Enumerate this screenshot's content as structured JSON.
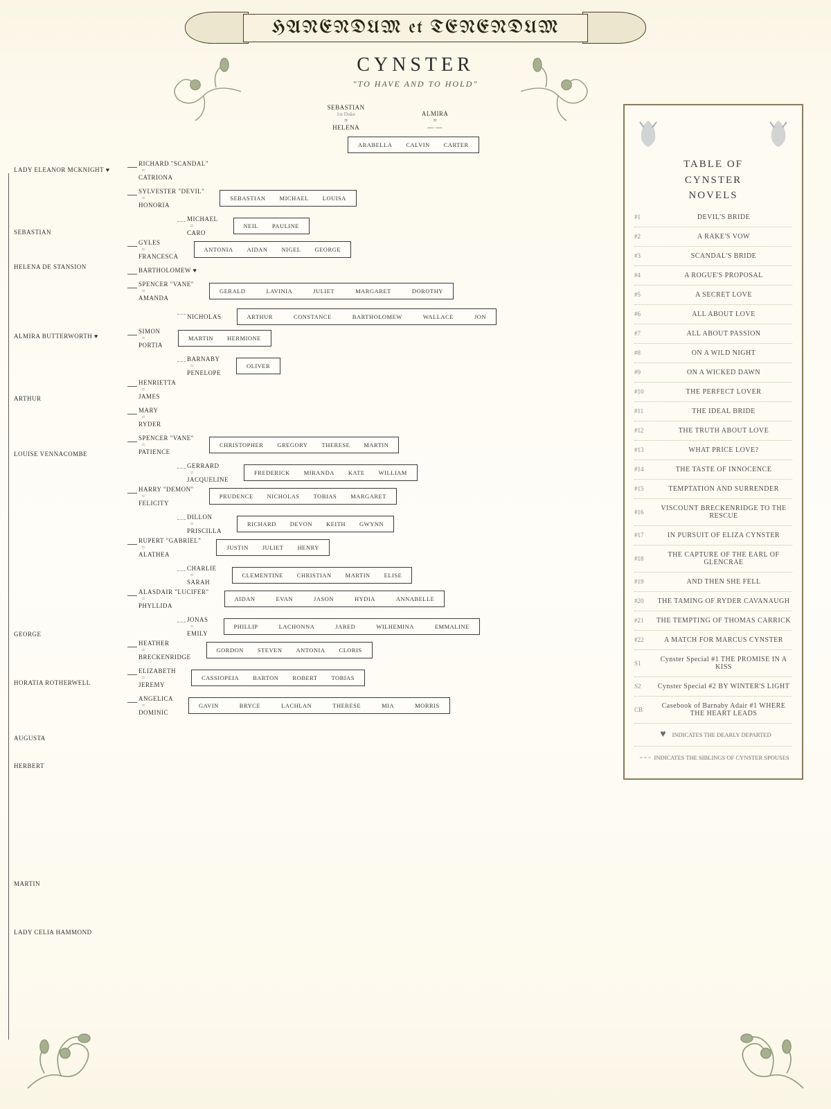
{
  "banner": "HANENDUM et TENENDUM",
  "family_name": "CYNSTER",
  "motto": "\"TO HAVE AND TO HOLD\"",
  "colors": {
    "parchment": "#fdf9ed",
    "ink": "#2a2a2a",
    "border": "#8a7a5c",
    "line": "#5a5a5a",
    "dash": "#9aa7b0",
    "floral": "#5e6b4a"
  },
  "legend": {
    "title_l1": "TABLE OF",
    "title_l2": "CYNSTER",
    "title_l3": "NOVELS",
    "items": [
      {
        "n": "#1",
        "t": "DEVIL'S BRIDE"
      },
      {
        "n": "#2",
        "t": "A RAKE'S VOW"
      },
      {
        "n": "#3",
        "t": "SCANDAL'S BRIDE"
      },
      {
        "n": "#4",
        "t": "A ROGUE'S PROPOSAL"
      },
      {
        "n": "#5",
        "t": "A SECRET LOVE"
      },
      {
        "n": "#6",
        "t": "ALL ABOUT LOVE"
      },
      {
        "n": "#7",
        "t": "ALL ABOUT PASSION"
      },
      {
        "n": "#8",
        "t": "ON A WILD NIGHT"
      },
      {
        "n": "#9",
        "t": "ON A WICKED DAWN"
      },
      {
        "n": "#10",
        "t": "THE PERFECT LOVER"
      },
      {
        "n": "#11",
        "t": "THE IDEAL BRIDE"
      },
      {
        "n": "#12",
        "t": "THE TRUTH ABOUT LOVE"
      },
      {
        "n": "#13",
        "t": "WHAT PRICE LOVE?"
      },
      {
        "n": "#14",
        "t": "THE TASTE OF INNOCENCE"
      },
      {
        "n": "#15",
        "t": "TEMPTATION AND SURRENDER"
      },
      {
        "n": "#16",
        "t": "VISCOUNT BRECKENRIDGE TO THE RESCUE"
      },
      {
        "n": "#17",
        "t": "IN PURSUIT OF ELIZA CYNSTER"
      },
      {
        "n": "#18",
        "t": "THE CAPTURE OF THE EARL OF GLENCRAE"
      },
      {
        "n": "#19",
        "t": "AND THEN SHE FELL"
      },
      {
        "n": "#20",
        "t": "THE TAMING OF RYDER CAVANAUGH"
      },
      {
        "n": "#21",
        "t": "THE TEMPTING OF THOMAS CARRICK"
      },
      {
        "n": "#22",
        "t": "A MATCH FOR MARCUS CYNSTER"
      },
      {
        "n": "S1",
        "t": "Cynster Special #1 THE PROMISE IN A KISS"
      },
      {
        "n": "S2",
        "t": "Cynster Special #2 BY WINTER'S LIGHT"
      },
      {
        "n": "CB",
        "t": "Casebook of Barnaby Adair #1 WHERE THE HEART LEADS"
      }
    ],
    "foot1_mark": "♥",
    "foot1": "INDICATES THE DEARLY DEPARTED",
    "foot2_mark": "- - -",
    "foot2": "INDICATES THE SIBLINGS OF CYNSTER SPOUSES"
  },
  "tree": {
    "root": {
      "p1": "SEBASTIAN",
      "p1sub": "1st Duke",
      "p2": "HELENA"
    },
    "root2": {
      "p1": "ALMIRA",
      "p2": "— —",
      "kids": [
        "ARABELLA",
        "CALVIN",
        "CARTER"
      ]
    },
    "left_ancestors": [
      "LADY ELEANOR MCKNIGHT ♥",
      "SEBASTIAN",
      "HELENA de STANSION",
      "ALMIRA BUTTERWORTH ♥",
      "ARTHUR",
      "LOUISE VENNACOMBE",
      "GEORGE",
      "HORATIA ROTHERWELL",
      "AUGUSTA",
      "HERBERT",
      "MARTIN",
      "LADY CELIA HAMMOND"
    ],
    "branches": [
      {
        "parent": "RICHARD \"SCANDAL\"",
        "spouse": "CATRIONA",
        "kids": []
      },
      {
        "parent": "SYLVESTER \"DEVIL\"",
        "spouse": "HONORIA",
        "kids": [
          "SEBASTIAN",
          "MICHAEL",
          "LOUISA"
        ]
      },
      {
        "parent": "MICHAEL",
        "spouse": "CARO",
        "kids": [
          "NEIL",
          "PAULINE"
        ],
        "dash": true,
        "indent": 1
      },
      {
        "parent": "GYLES",
        "spouse": "FRANCESCA",
        "kids": [
          "ANTONIA",
          "AIDAN",
          "NIGEL",
          "GEORGE"
        ]
      },
      {
        "parent": "BARTHOLOMEW ♥",
        "spouse": "",
        "kids": []
      },
      {
        "parent": "SPENCER \"VANE\"",
        "spouse": "AMANDA",
        "kids": [
          "GERALD",
          "LAVINIA",
          "JULIET",
          "MARGARET",
          "DOROTHY"
        ]
      },
      {
        "parent": "NICHOLAS",
        "spouse": "",
        "kids": [
          "ARTHUR",
          "CONSTANCE",
          "BARTHOLOMEW",
          "WALLACE",
          "JON"
        ],
        "dash": true,
        "indent": 1
      },
      {
        "parent": "SIMON",
        "spouse": "PORTIA",
        "kids": [
          "MARTIN",
          "HERMIONE"
        ]
      },
      {
        "parent": "BARNABY",
        "spouse": "PENELOPE",
        "kids": [
          "OLIVER"
        ],
        "dash": true,
        "indent": 1
      },
      {
        "parent": "HENRIETTA",
        "spouse": "JAMES",
        "kids": []
      },
      {
        "parent": "MARY",
        "spouse": "RYDER",
        "kids": []
      },
      {
        "parent": "SPENCER \"VANE\"",
        "spouse": "PATIENCE",
        "kids": [
          "CHRISTOPHER",
          "GREGORY",
          "THERESE",
          "MARTIN"
        ]
      },
      {
        "parent": "GERRARD",
        "spouse": "JACQUELINE",
        "kids": [
          "FREDERICK",
          "MIRANDA",
          "KATE",
          "WILLIAM"
        ],
        "dash": true,
        "indent": 1
      },
      {
        "parent": "HARRY \"DEMON\"",
        "spouse": "FELICITY",
        "kids": [
          "PRUDENCE",
          "NICHOLAS",
          "TOBIAS",
          "MARGARET"
        ]
      },
      {
        "parent": "DILLON",
        "spouse": "PRISCILLA",
        "kids": [
          "RICHARD",
          "DEVON",
          "KEITH",
          "GWYNN"
        ],
        "dash": true,
        "indent": 1
      },
      {
        "parent": "RUPERT \"GABRIEL\"",
        "spouse": "ALATHEA",
        "kids": [
          "JUSTIN",
          "JULIET",
          "HENRY"
        ]
      },
      {
        "parent": "CHARLIE",
        "spouse": "SARAH",
        "kids": [
          "CLEMENTINE",
          "CHRISTIAN",
          "MARTIN",
          "ELISE"
        ],
        "dash": true,
        "indent": 1
      },
      {
        "parent": "ALASDAIR \"LUCIFER\"",
        "spouse": "PHYLLIDA",
        "kids": [
          "AIDAN",
          "EVAN",
          "JASON",
          "HYDIA",
          "ANNABELLE"
        ]
      },
      {
        "parent": "JONAS",
        "spouse": "EMILY",
        "kids": [
          "PHILLIP",
          "LACHONNA",
          "JARED",
          "WILHEMINA",
          "EMMALINE"
        ],
        "dash": true,
        "indent": 1
      },
      {
        "parent": "HEATHER",
        "spouse": "BRECKENRIDGE",
        "kids": [
          "GORDON",
          "STEVEN",
          "ANTONIA",
          "CLORIS"
        ]
      },
      {
        "parent": "ELIZABETH",
        "spouse": "JEREMY",
        "kids": [
          "CASSIOPEIA",
          "BARTON",
          "ROBERT",
          "TOBIAS"
        ]
      },
      {
        "parent": "ANGELICA",
        "spouse": "DOMINIC",
        "kids": [
          "GAVIN",
          "BRYCE",
          "LACHLAN",
          "THERESE",
          "MIA",
          "MORRIS"
        ]
      }
    ]
  }
}
